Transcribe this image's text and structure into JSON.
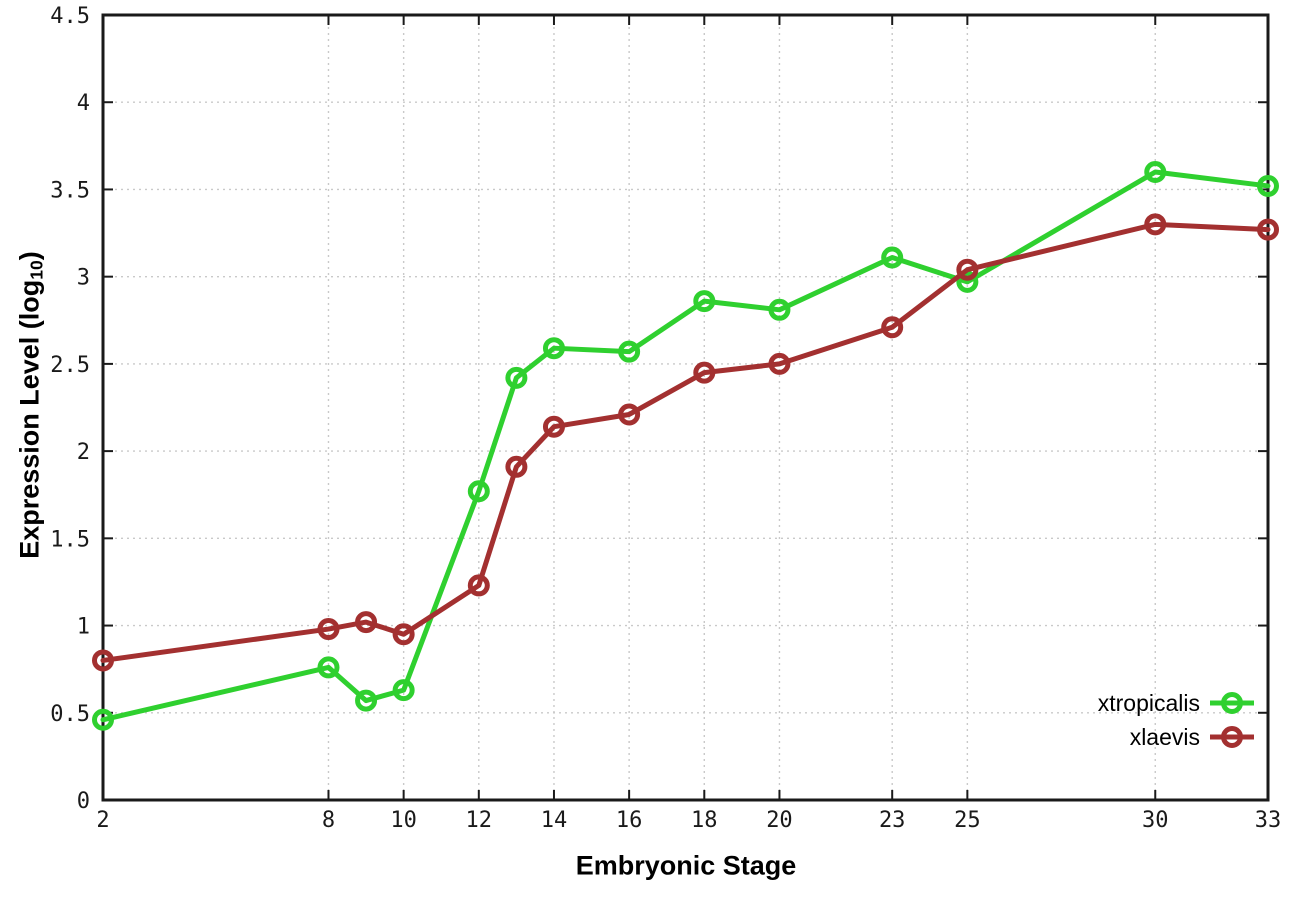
{
  "figure": {
    "background": "#ffffff"
  },
  "chart_data": {
    "type": "line",
    "title": "",
    "xlabel": "Embryonic Stage",
    "ylabel": "Expression Level (log10)",
    "ylabel_parts": {
      "pre": "Expression Level (log",
      "sub": "10",
      "post": ")"
    },
    "x": [
      2,
      8,
      9,
      10,
      12,
      13,
      14,
      16,
      18,
      20,
      23,
      25,
      30,
      33
    ],
    "series": [
      {
        "name": "xtropicalis",
        "color": "#2fd02f",
        "marker": "open-circle",
        "values": [
          0.46,
          0.76,
          0.57,
          0.63,
          1.77,
          2.42,
          2.59,
          2.57,
          2.86,
          2.81,
          3.11,
          2.97,
          3.6,
          3.52
        ]
      },
      {
        "name": "xlaevis",
        "color": "#a33030",
        "marker": "open-circle",
        "values": [
          0.8,
          0.98,
          1.02,
          0.95,
          1.23,
          1.91,
          2.14,
          2.21,
          2.45,
          2.5,
          2.71,
          3.04,
          3.3,
          3.27
        ]
      }
    ],
    "xlim": [
      2,
      33
    ],
    "ylim": [
      0,
      4.5
    ],
    "xticks": [
      2,
      8,
      10,
      12,
      14,
      16,
      18,
      20,
      23,
      25,
      30,
      33
    ],
    "yticks": [
      0,
      0.5,
      1,
      1.5,
      2,
      2.5,
      3,
      3.5,
      4,
      4.5
    ],
    "grid": true,
    "grid_style": "dotted",
    "legend_position": "bottom-right",
    "colors": {
      "grid": "#c9c9c9",
      "border": "#1a1a1a",
      "tick": "#1a1a1a",
      "text": "#000000",
      "background": "#ffffff"
    }
  }
}
